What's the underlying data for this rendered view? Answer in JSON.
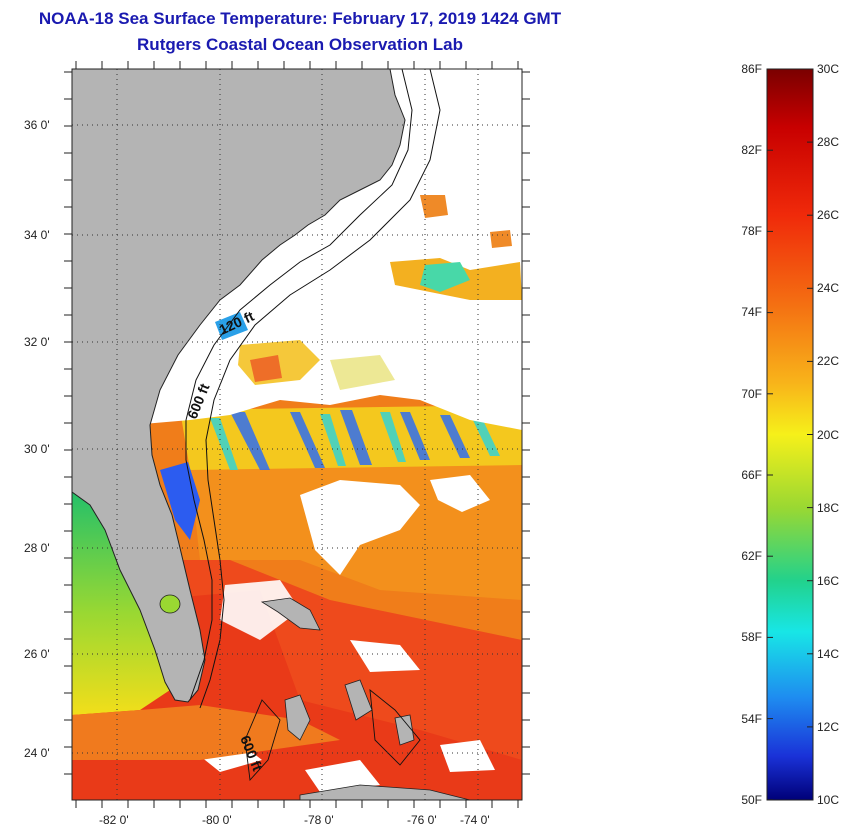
{
  "title": {
    "line1": "NOAA-18 Sea Surface Temperature:  February 17, 2019 1424 GMT",
    "line2": "Rutgers Coastal Ocean Observation Lab"
  },
  "map": {
    "lat_labels": [
      "36 0'",
      "34 0'",
      "32 0'",
      "30 0'",
      "28 0'",
      "26 0'",
      "24 0'"
    ],
    "lon_labels": [
      "-82 0'",
      "-80 0'",
      "-78 0'",
      "-76 0'",
      "-74 0'"
    ],
    "contour_labels": [
      "120 ft",
      "600 ft",
      "600 ft"
    ],
    "colors": {
      "land": "#b4b4b4",
      "cloud": "#ffffff",
      "warm": "#ee3b1a",
      "mid": "#f08a1c"
    }
  },
  "colorbar": {
    "f_labels": [
      "86F",
      "82F",
      "78F",
      "74F",
      "70F",
      "66F",
      "62F",
      "58F",
      "54F",
      "50F"
    ],
    "c_labels": [
      "30C",
      "28C",
      "26C",
      "24C",
      "22C",
      "20C",
      "18C",
      "16C",
      "14C",
      "12C",
      "10C"
    ],
    "range_c": [
      10,
      30
    ]
  }
}
